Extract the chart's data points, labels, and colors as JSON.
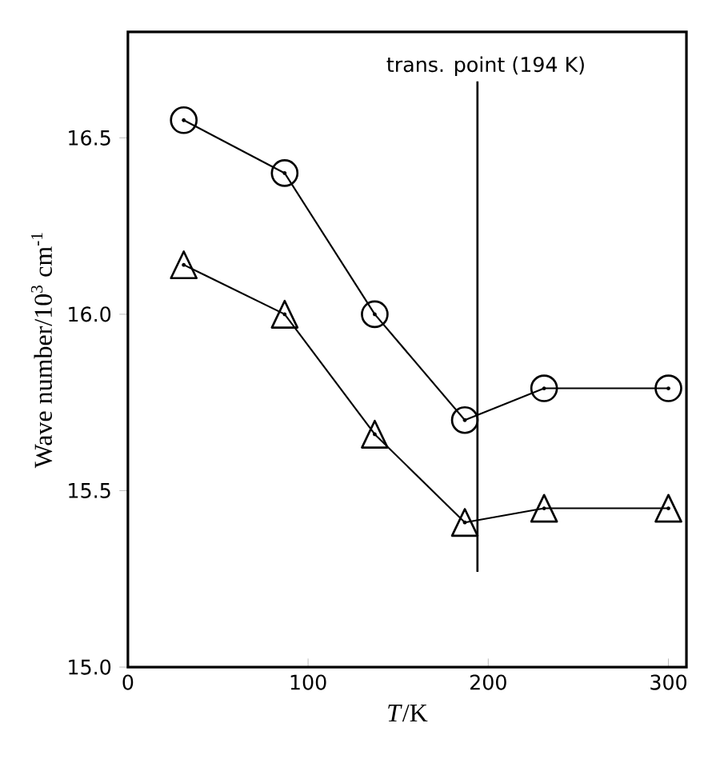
{
  "chart_data": {
    "type": "line",
    "xlabel": "*T*/K",
    "ylabel": "Wave number/10$^{3}$ cm$^{-1}$",
    "x": [
      31,
      87,
      137,
      187,
      231,
      300
    ],
    "series": [
      {
        "color": "#000000",
        "marker": "circle",
        "values": [
          16.55,
          16.4,
          16.0,
          15.7,
          15.79,
          15.79
        ]
      },
      {
        "color": "#000000",
        "marker": "triangle",
        "values": [
          16.14,
          16.0,
          15.66,
          15.41,
          15.45,
          15.45
        ]
      }
    ],
    "xlim": [
      0,
      310
    ],
    "ylim": [
      15.0,
      16.8
    ],
    "xticks": [
      0,
      100,
      200,
      300
    ],
    "yticks": [
      {
        "value": 15,
        "label": "15.0"
      },
      15.5,
      {
        "value": 16,
        "label": "16.0"
      },
      16.5
    ],
    "ref_lines": [
      {
        "axis": "x",
        "value": 194,
        "label": "trans. point (194 K)"
      }
    ],
    "grid": false,
    "line_style": "solid"
  }
}
